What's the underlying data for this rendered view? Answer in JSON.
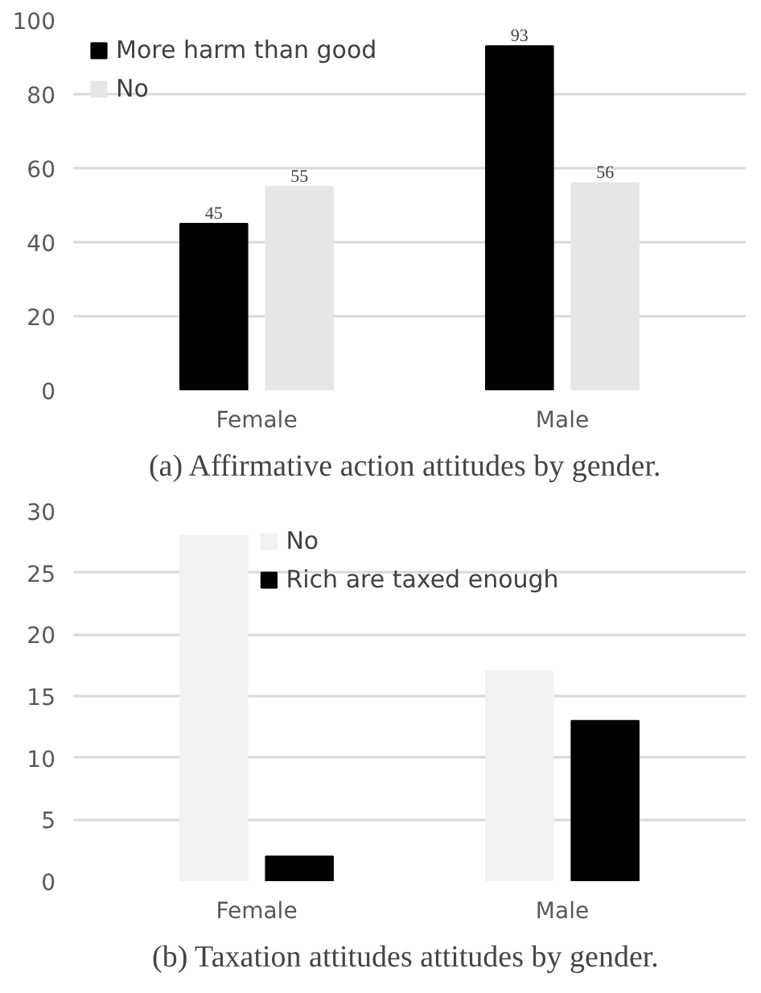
{
  "chart_data": [
    {
      "type": "bar",
      "title": "(a)  Affirmative action attitudes by gender.",
      "categories": [
        "Female",
        "Male"
      ],
      "series": [
        {
          "name": "More harm than good",
          "color": "#000000",
          "values": [
            45,
            93
          ]
        },
        {
          "name": "No",
          "color": "#e6e6e6",
          "values": [
            55,
            56
          ]
        }
      ],
      "ylim": [
        0,
        100
      ],
      "yticks": [
        0,
        20,
        40,
        60,
        80,
        100
      ],
      "grid": "y",
      "legend": "top left",
      "data_labels": true
    },
    {
      "type": "bar",
      "title": "(b)  Taxation attitudes attitudes by gender.",
      "categories": [
        "Female",
        "Male"
      ],
      "series": [
        {
          "name": "No",
          "color": "#f2f2f2",
          "values": [
            28,
            17
          ]
        },
        {
          "name": "Rich are taxed enough",
          "color": "#000000",
          "values": [
            2,
            13
          ]
        }
      ],
      "ylim": [
        0,
        30
      ],
      "yticks": [
        0,
        5,
        10,
        15,
        20,
        25,
        30
      ],
      "grid": "y",
      "legend": "top"
    }
  ]
}
